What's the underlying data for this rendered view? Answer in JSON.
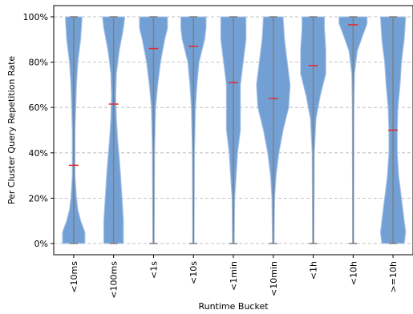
{
  "chart_data": {
    "type": "violin",
    "xlabel": "Runtime Bucket",
    "ylabel": "Per Cluster Query Repetition Rate",
    "y_tick_labels": [
      "0%",
      "20%",
      "40%",
      "60%",
      "80%",
      "100%"
    ],
    "y_ticks": [
      0,
      20,
      40,
      60,
      80,
      100
    ],
    "ylim": [
      -5,
      105
    ],
    "grid": "horizontal dashed",
    "colors": {
      "violin_fill": "#6a9bd3",
      "violin_edge": "#a9c4e6",
      "whisker": "#7f7f7f",
      "median": "#e8262b"
    },
    "categories": [
      "<10ms",
      "<100ms",
      "<1s",
      "<10s",
      "<1min",
      "<10min",
      "<1h",
      "<10h",
      ">=10h"
    ],
    "medians": [
      34.5,
      61.5,
      86,
      87,
      71,
      64,
      78.5,
      96.5,
      50
    ],
    "min": [
      0,
      0,
      0,
      0,
      0,
      0,
      0,
      0,
      0
    ],
    "max": [
      100,
      100,
      100,
      100,
      100,
      100,
      100,
      100,
      100
    ],
    "violin_halfwidths": [
      [
        [
          0,
          8
        ],
        [
          5,
          8
        ],
        [
          10,
          5
        ],
        [
          15,
          3
        ],
        [
          20,
          2
        ],
        [
          30,
          1
        ],
        [
          40,
          1
        ],
        [
          50,
          1
        ],
        [
          60,
          1.5
        ],
        [
          70,
          2
        ],
        [
          80,
          3
        ],
        [
          90,
          5
        ],
        [
          100,
          6
        ]
      ],
      [
        [
          0,
          7
        ],
        [
          10,
          7
        ],
        [
          20,
          6
        ],
        [
          30,
          5
        ],
        [
          38,
          4
        ],
        [
          45,
          3
        ],
        [
          55,
          2
        ],
        [
          65,
          1.5
        ],
        [
          75,
          2
        ],
        [
          85,
          4
        ],
        [
          95,
          7
        ],
        [
          100,
          8
        ]
      ],
      [
        [
          0,
          0.5
        ],
        [
          40,
          0.8
        ],
        [
          60,
          1.5
        ],
        [
          70,
          3
        ],
        [
          80,
          5
        ],
        [
          90,
          8
        ],
        [
          95,
          10
        ],
        [
          100,
          10
        ]
      ],
      [
        [
          0,
          0.5
        ],
        [
          40,
          0.8
        ],
        [
          60,
          1.5
        ],
        [
          70,
          2.5
        ],
        [
          80,
          4
        ],
        [
          90,
          8
        ],
        [
          95,
          9
        ],
        [
          100,
          9
        ]
      ],
      [
        [
          0,
          0.6
        ],
        [
          20,
          1
        ],
        [
          30,
          2
        ],
        [
          40,
          3
        ],
        [
          50,
          5
        ],
        [
          60,
          5
        ],
        [
          70,
          5
        ],
        [
          80,
          7
        ],
        [
          90,
          9
        ],
        [
          100,
          9
        ]
      ],
      [
        [
          0,
          0.6
        ],
        [
          20,
          1
        ],
        [
          30,
          2
        ],
        [
          40,
          4
        ],
        [
          50,
          7
        ],
        [
          60,
          11
        ],
        [
          70,
          12
        ],
        [
          80,
          10
        ],
        [
          90,
          8
        ],
        [
          100,
          7
        ]
      ],
      [
        [
          0,
          0.5
        ],
        [
          40,
          0.8
        ],
        [
          55,
          2
        ],
        [
          65,
          5
        ],
        [
          75,
          9
        ],
        [
          85,
          9
        ],
        [
          95,
          8
        ],
        [
          100,
          8
        ]
      ],
      [
        [
          0,
          0.4
        ],
        [
          60,
          0.6
        ],
        [
          75,
          1
        ],
        [
          85,
          3
        ],
        [
          92,
          7
        ],
        [
          97,
          10
        ],
        [
          100,
          10
        ]
      ],
      [
        [
          0,
          8
        ],
        [
          5,
          9
        ],
        [
          10,
          8
        ],
        [
          20,
          6
        ],
        [
          30,
          4
        ],
        [
          40,
          3
        ],
        [
          50,
          3
        ],
        [
          60,
          3.5
        ],
        [
          70,
          5
        ],
        [
          80,
          6
        ],
        [
          90,
          8
        ],
        [
          100,
          9
        ]
      ]
    ]
  }
}
